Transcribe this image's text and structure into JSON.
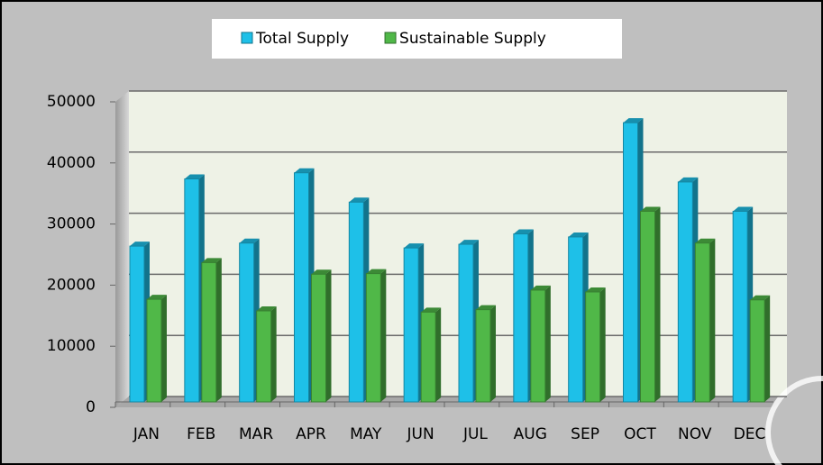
{
  "chart_data": {
    "type": "bar",
    "categories": [
      "JAN",
      "FEB",
      "MAR",
      "APR",
      "MAY",
      "JUN",
      "JUL",
      "AUG",
      "SEP",
      "OCT",
      "NOV",
      "DEC"
    ],
    "series": [
      {
        "name": "Total Supply",
        "color": "#1ec0e8",
        "values": [
          25500,
          36500,
          26000,
          37500,
          32700,
          25200,
          25800,
          27500,
          27000,
          45700,
          36000,
          31200
        ]
      },
      {
        "name": "Sustainable Supply",
        "color": "#50b848",
        "values": [
          16800,
          22800,
          14900,
          20900,
          21000,
          14700,
          15100,
          18300,
          18000,
          31200,
          26000,
          16700
        ]
      }
    ],
    "ylim": [
      0,
      50000
    ],
    "yticks": [
      0,
      10000,
      20000,
      30000,
      40000,
      50000
    ],
    "grid": true,
    "legend": "top"
  }
}
